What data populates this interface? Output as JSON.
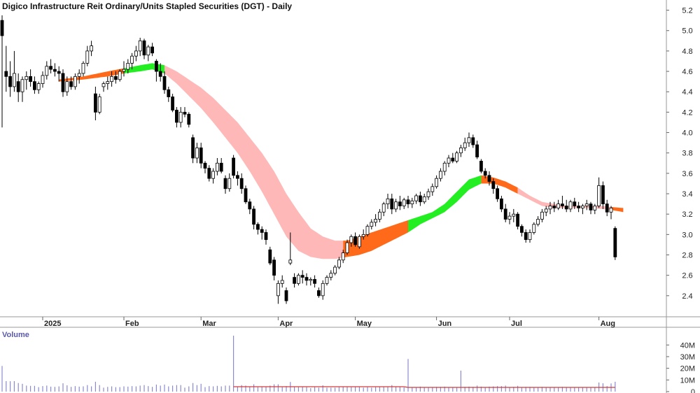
{
  "chart_data": {
    "type": "candlestick",
    "title": "Digico Infrastructure Reit Ordinary/Units Stapled Securities (DGT) - Daily",
    "price_axis": {
      "ylim": [
        2.2,
        5.3
      ],
      "ticks": [
        "5.2",
        "5.0",
        "4.8",
        "4.6",
        "4.4",
        "4.2",
        "4.0",
        "3.8",
        "3.6",
        "3.4",
        "3.2",
        "3.0",
        "2.8",
        "2.6",
        "2.4"
      ]
    },
    "month_labels": [
      {
        "label": "2025",
        "index": 10
      },
      {
        "label": "Feb",
        "index": 30
      },
      {
        "label": "Mar",
        "index": 49
      },
      {
        "label": "Apr",
        "index": 68
      },
      {
        "label": "May",
        "index": 87
      },
      {
        "label": "Jun",
        "index": 107
      },
      {
        "label": "Jul",
        "index": 125
      },
      {
        "label": "Aug",
        "index": 147
      }
    ],
    "volume_panel": {
      "label": "Volume",
      "ylim": [
        0,
        48000000
      ],
      "ticks": [
        "40M",
        "30M",
        "20M",
        "10M",
        "0"
      ],
      "average_color": "#d43c3c",
      "bar_color": "#8a8ad0"
    },
    "ribbon_colors": {
      "up": "#22ee22",
      "down": "#ff6a1a",
      "down_light": "#ffb8b8",
      "up_light": "#aaf0aa"
    },
    "ohlc": [
      [
        5.1,
        5.15,
        4.05,
        4.95
      ],
      [
        4.6,
        4.85,
        4.4,
        4.55
      ],
      [
        4.55,
        4.7,
        4.35,
        4.45
      ],
      [
        4.45,
        4.8,
        4.4,
        4.58
      ],
      [
        4.5,
        4.58,
        4.3,
        4.4
      ],
      [
        4.4,
        4.55,
        4.3,
        4.52
      ],
      [
        4.52,
        4.6,
        4.42,
        4.55
      ],
      [
        4.55,
        4.62,
        4.45,
        4.5
      ],
      [
        4.5,
        4.55,
        4.38,
        4.42
      ],
      [
        4.42,
        4.5,
        4.38,
        4.48
      ],
      [
        4.48,
        4.6,
        4.44,
        4.56
      ],
      [
        4.56,
        4.7,
        4.52,
        4.65
      ],
      [
        4.65,
        4.72,
        4.58,
        4.62
      ],
      [
        4.62,
        4.68,
        4.55,
        4.6
      ],
      [
        4.6,
        4.65,
        4.5,
        4.58
      ],
      [
        4.58,
        4.62,
        4.35,
        4.4
      ],
      [
        4.4,
        4.55,
        4.36,
        4.5
      ],
      [
        4.5,
        4.55,
        4.42,
        4.45
      ],
      [
        4.45,
        4.58,
        4.42,
        4.55
      ],
      [
        4.55,
        4.62,
        4.48,
        4.58
      ],
      [
        4.58,
        4.7,
        4.55,
        4.68
      ],
      [
        4.68,
        4.85,
        4.65,
        4.8
      ],
      [
        4.8,
        4.9,
        4.75,
        4.85
      ],
      [
        4.38,
        4.45,
        4.12,
        4.2
      ],
      [
        4.2,
        4.38,
        4.18,
        4.35
      ],
      [
        4.45,
        4.5,
        4.4,
        4.48
      ],
      [
        4.48,
        4.55,
        4.42,
        4.5
      ],
      [
        4.5,
        4.6,
        4.45,
        4.55
      ],
      [
        4.55,
        4.6,
        4.48,
        4.52
      ],
      [
        4.52,
        4.62,
        4.5,
        4.6
      ],
      [
        4.6,
        4.7,
        4.55,
        4.62
      ],
      [
        4.62,
        4.72,
        4.58,
        4.68
      ],
      [
        4.68,
        4.78,
        4.62,
        4.75
      ],
      [
        4.75,
        4.85,
        4.7,
        4.8
      ],
      [
        4.8,
        4.93,
        4.75,
        4.9
      ],
      [
        4.9,
        4.92,
        4.72,
        4.76
      ],
      [
        4.76,
        4.86,
        4.7,
        4.84
      ],
      [
        4.84,
        4.88,
        4.75,
        4.78
      ],
      [
        4.7,
        4.72,
        4.5,
        4.6
      ],
      [
        4.6,
        4.68,
        4.5,
        4.55
      ],
      [
        4.55,
        4.6,
        4.38,
        4.42
      ],
      [
        4.42,
        4.45,
        4.3,
        4.35
      ],
      [
        4.35,
        4.38,
        4.2,
        4.22
      ],
      [
        4.22,
        4.25,
        4.05,
        4.1
      ],
      [
        4.1,
        4.25,
        4.05,
        4.2
      ],
      [
        4.2,
        4.25,
        4.15,
        4.18
      ],
      [
        4.18,
        4.2,
        4.05,
        4.08
      ],
      [
        3.95,
        3.98,
        3.7,
        3.75
      ],
      [
        3.75,
        3.9,
        3.7,
        3.85
      ],
      [
        3.85,
        3.9,
        3.65,
        3.7
      ],
      [
        3.7,
        3.72,
        3.6,
        3.65
      ],
      [
        3.65,
        3.68,
        3.52,
        3.55
      ],
      [
        3.55,
        3.65,
        3.5,
        3.62
      ],
      [
        3.62,
        3.75,
        3.58,
        3.7
      ],
      [
        3.7,
        3.75,
        3.6,
        3.62
      ],
      [
        3.55,
        3.58,
        3.4,
        3.45
      ],
      [
        3.45,
        3.6,
        3.42,
        3.55
      ],
      [
        3.75,
        3.78,
        3.55,
        3.58
      ],
      [
        3.58,
        3.62,
        3.48,
        3.55
      ],
      [
        3.55,
        3.6,
        3.4,
        3.45
      ],
      [
        3.45,
        3.48,
        3.3,
        3.32
      ],
      [
        3.32,
        3.35,
        3.2,
        3.25
      ],
      [
        3.25,
        3.28,
        3.05,
        3.1
      ],
      [
        3.1,
        3.12,
        3.0,
        3.05
      ],
      [
        3.05,
        3.08,
        2.95,
        3.02
      ],
      [
        3.02,
        3.05,
        2.9,
        2.95
      ],
      [
        2.85,
        2.88,
        2.7,
        2.72
      ],
      [
        2.75,
        2.78,
        2.55,
        2.6
      ],
      [
        2.4,
        2.55,
        2.32,
        2.52
      ],
      [
        2.52,
        2.6,
        2.48,
        2.55
      ],
      [
        2.45,
        2.48,
        2.32,
        2.35
      ],
      [
        2.72,
        3.02,
        2.7,
        2.75
      ],
      [
        2.58,
        2.62,
        2.48,
        2.52
      ],
      [
        2.52,
        2.62,
        2.5,
        2.6
      ],
      [
        2.6,
        2.65,
        2.52,
        2.58
      ],
      [
        2.58,
        2.62,
        2.5,
        2.55
      ],
      [
        2.55,
        2.58,
        2.5,
        2.56
      ],
      [
        2.56,
        2.6,
        2.48,
        2.52
      ],
      [
        2.45,
        2.48,
        2.38,
        2.4
      ],
      [
        2.4,
        2.55,
        2.36,
        2.52
      ],
      [
        2.52,
        2.6,
        2.5,
        2.58
      ],
      [
        2.58,
        2.65,
        2.55,
        2.62
      ],
      [
        2.62,
        2.7,
        2.6,
        2.68
      ],
      [
        2.68,
        2.78,
        2.66,
        2.75
      ],
      [
        2.75,
        2.85,
        2.72,
        2.82
      ],
      [
        2.82,
        2.95,
        2.8,
        2.92
      ],
      [
        2.92,
        3.0,
        2.88,
        2.98
      ],
      [
        2.98,
        3.02,
        2.88,
        2.9
      ],
      [
        2.88,
        3.0,
        2.86,
        2.98
      ],
      [
        2.98,
        3.05,
        2.95,
        3.0
      ],
      [
        3.0,
        3.1,
        2.98,
        3.08
      ],
      [
        3.08,
        3.15,
        3.05,
        3.12
      ],
      [
        3.12,
        3.2,
        3.08,
        3.15
      ],
      [
        3.15,
        3.25,
        3.12,
        3.22
      ],
      [
        3.22,
        3.32,
        3.18,
        3.3
      ],
      [
        3.3,
        3.4,
        3.25,
        3.35
      ],
      [
        3.35,
        3.4,
        3.2,
        3.25
      ],
      [
        3.25,
        3.35,
        3.22,
        3.32
      ],
      [
        3.32,
        3.38,
        3.24,
        3.28
      ],
      [
        3.28,
        3.36,
        3.25,
        3.34
      ],
      [
        3.34,
        3.38,
        3.26,
        3.3
      ],
      [
        3.3,
        3.36,
        3.26,
        3.33
      ],
      [
        3.33,
        3.4,
        3.3,
        3.38
      ],
      [
        3.38,
        3.42,
        3.28,
        3.32
      ],
      [
        3.32,
        3.4,
        3.3,
        3.37
      ],
      [
        3.37,
        3.45,
        3.34,
        3.42
      ],
      [
        3.42,
        3.5,
        3.38,
        3.47
      ],
      [
        3.47,
        3.58,
        3.45,
        3.55
      ],
      [
        3.55,
        3.65,
        3.52,
        3.62
      ],
      [
        3.62,
        3.72,
        3.58,
        3.7
      ],
      [
        3.7,
        3.78,
        3.66,
        3.75
      ],
      [
        3.75,
        3.8,
        3.7,
        3.72
      ],
      [
        3.72,
        3.82,
        3.7,
        3.8
      ],
      [
        3.8,
        3.88,
        3.76,
        3.85
      ],
      [
        3.85,
        3.95,
        3.82,
        3.9
      ],
      [
        3.9,
        4.0,
        3.86,
        3.95
      ],
      [
        3.95,
        3.98,
        3.85,
        3.88
      ],
      [
        3.88,
        3.92,
        3.74,
        3.76
      ],
      [
        3.72,
        3.74,
        3.6,
        3.62
      ],
      [
        3.62,
        3.65,
        3.55,
        3.58
      ],
      [
        3.58,
        3.62,
        3.48,
        3.52
      ],
      [
        3.52,
        3.55,
        3.4,
        3.45
      ],
      [
        3.45,
        3.48,
        3.32,
        3.35
      ],
      [
        3.35,
        3.38,
        3.22,
        3.25
      ],
      [
        3.25,
        3.3,
        3.12,
        3.15
      ],
      [
        3.15,
        3.22,
        3.1,
        3.18
      ],
      [
        3.18,
        3.25,
        3.12,
        3.2
      ],
      [
        3.2,
        3.22,
        3.05,
        3.08
      ],
      [
        3.08,
        3.1,
        2.98,
        3.02
      ],
      [
        3.02,
        3.05,
        2.92,
        2.95
      ],
      [
        2.95,
        3.05,
        2.92,
        3.02
      ],
      [
        3.02,
        3.12,
        3.0,
        3.1
      ],
      [
        3.1,
        3.18,
        3.08,
        3.15
      ],
      [
        3.15,
        3.25,
        3.12,
        3.22
      ],
      [
        3.22,
        3.28,
        3.18,
        3.25
      ],
      [
        3.25,
        3.32,
        3.2,
        3.28
      ],
      [
        3.28,
        3.32,
        3.22,
        3.26
      ],
      [
        3.26,
        3.34,
        3.24,
        3.3
      ],
      [
        3.3,
        3.38,
        3.25,
        3.28
      ],
      [
        3.28,
        3.34,
        3.22,
        3.25
      ],
      [
        3.25,
        3.34,
        3.22,
        3.32
      ],
      [
        3.32,
        3.36,
        3.25,
        3.28
      ],
      [
        3.28,
        3.32,
        3.22,
        3.26
      ],
      [
        3.26,
        3.3,
        3.2,
        3.28
      ],
      [
        3.28,
        3.34,
        3.24,
        3.3
      ],
      [
        3.3,
        3.32,
        3.2,
        3.24
      ],
      [
        3.24,
        3.3,
        3.2,
        3.28
      ],
      [
        3.28,
        3.56,
        3.26,
        3.48
      ],
      [
        3.48,
        3.52,
        3.25,
        3.3
      ],
      [
        3.3,
        3.34,
        3.18,
        3.22
      ],
      [
        3.22,
        3.28,
        3.15,
        3.26
      ],
      [
        3.06,
        3.08,
        2.75,
        2.78
      ]
    ],
    "ribbon": [
      [
        14,
        4.52,
        4.5
      ],
      [
        20,
        4.55,
        4.52
      ],
      [
        26,
        4.6,
        4.55
      ],
      [
        30,
        4.63,
        4.58
      ],
      [
        34,
        4.66,
        4.6
      ],
      [
        37,
        4.68,
        4.62
      ],
      [
        40,
        4.66,
        4.58
      ],
      [
        43,
        4.6,
        4.48
      ],
      [
        46,
        4.52,
        4.36
      ],
      [
        49,
        4.44,
        4.24
      ],
      [
        52,
        4.34,
        4.1
      ],
      [
        55,
        4.22,
        3.95
      ],
      [
        58,
        4.1,
        3.8
      ],
      [
        61,
        3.95,
        3.62
      ],
      [
        64,
        3.8,
        3.42
      ],
      [
        67,
        3.62,
        3.2
      ],
      [
        70,
        3.4,
        2.98
      ],
      [
        73,
        3.22,
        2.84
      ],
      [
        76,
        3.06,
        2.78
      ],
      [
        79,
        2.98,
        2.76
      ],
      [
        82,
        2.94,
        2.76
      ],
      [
        85,
        2.94,
        2.78
      ],
      [
        88,
        2.98,
        2.8
      ],
      [
        91,
        3.02,
        2.84
      ],
      [
        94,
        3.06,
        2.9
      ],
      [
        97,
        3.1,
        2.96
      ],
      [
        100,
        3.14,
        3.02
      ],
      [
        103,
        3.18,
        3.1
      ],
      [
        106,
        3.22,
        3.16
      ],
      [
        109,
        3.3,
        3.22
      ],
      [
        112,
        3.42,
        3.32
      ],
      [
        115,
        3.54,
        3.44
      ],
      [
        118,
        3.58,
        3.5
      ],
      [
        121,
        3.56,
        3.5
      ],
      [
        124,
        3.52,
        3.46
      ],
      [
        127,
        3.46,
        3.4
      ],
      [
        130,
        3.38,
        3.34
      ],
      [
        133,
        3.32,
        3.28
      ],
      [
        136,
        3.3,
        3.26
      ],
      [
        139,
        3.28,
        3.26
      ],
      [
        142,
        3.28,
        3.26
      ],
      [
        145,
        3.28,
        3.26
      ],
      [
        148,
        3.28,
        3.25
      ],
      [
        150,
        3.27,
        3.24
      ],
      [
        153,
        3.26,
        3.22
      ]
    ],
    "ribbon_segments": [
      {
        "from": 14,
        "to": 30,
        "color": "down"
      },
      {
        "from": 30,
        "to": 40,
        "color": "up"
      },
      {
        "from": 40,
        "to": 84,
        "color": "down_light"
      },
      {
        "from": 84,
        "to": 100,
        "color": "down"
      },
      {
        "from": 100,
        "to": 118,
        "color": "up"
      },
      {
        "from": 118,
        "to": 127,
        "color": "down"
      },
      {
        "from": 127,
        "to": 150,
        "color": "down_light"
      },
      {
        "from": 150,
        "to": 153,
        "color": "down"
      }
    ]
  }
}
